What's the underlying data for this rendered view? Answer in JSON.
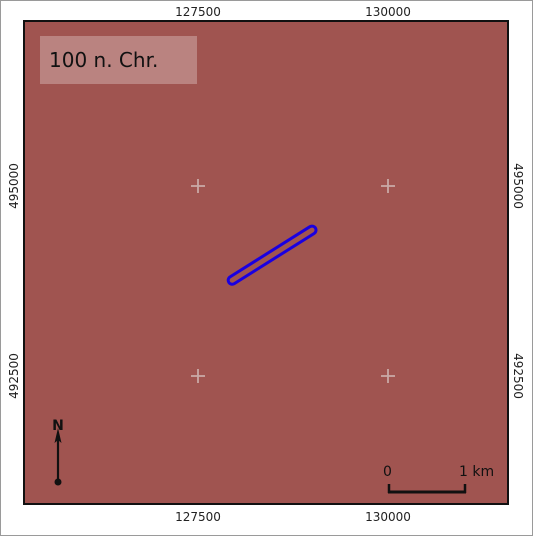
{
  "map": {
    "period_label": "100 n. Chr.",
    "background_color": "#a05450",
    "feature_color": "#1a00e0",
    "grid_marker_color": "#c9a9a6",
    "x_ticks": [
      "127500",
      "130000"
    ],
    "y_ticks": [
      "495000",
      "492500"
    ],
    "grid_markers": [
      {
        "x": 127500,
        "y": 495000
      },
      {
        "x": 130000,
        "y": 495000
      },
      {
        "x": 127500,
        "y": 492500
      },
      {
        "x": 130000,
        "y": 492500
      }
    ],
    "feature": {
      "type": "linear",
      "start": {
        "x": 127950,
        "y": 493760
      },
      "end": {
        "x": 129000,
        "y": 494420
      }
    }
  },
  "north_arrow": {
    "label": "N",
    "icon": "north-arrow-icon"
  },
  "scale_bar": {
    "start_label": "0",
    "end_label": "1 km"
  }
}
